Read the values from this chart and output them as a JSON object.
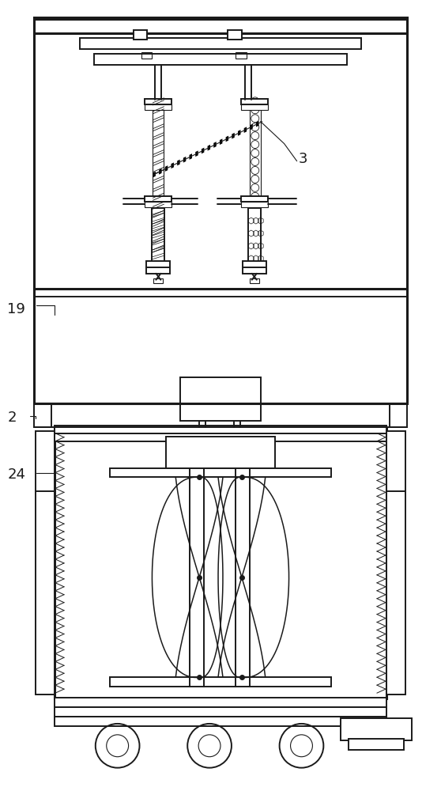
{
  "bg_color": "#ffffff",
  "line_color": "#1a1a1a",
  "fig_width": 5.58,
  "fig_height": 10.0
}
